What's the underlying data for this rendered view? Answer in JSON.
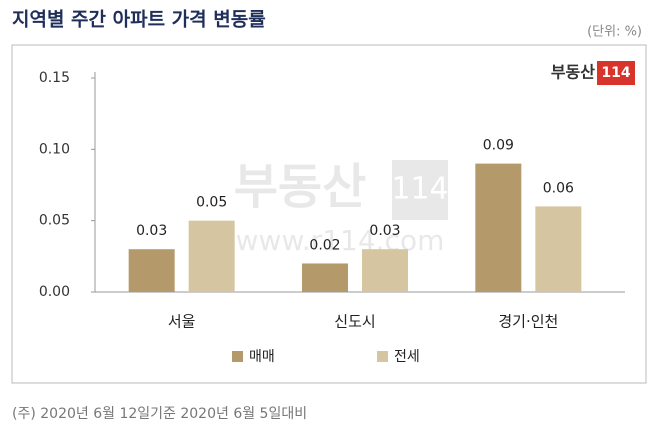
{
  "chart_data": {
    "type": "bar",
    "title": "지역별 주간 아파트 가격 변동률",
    "unit": "(단위: %)",
    "categories": [
      "서울",
      "신도시",
      "경기·인천"
    ],
    "series": [
      {
        "name": "매매",
        "color": "#b49a6a",
        "values": [
          0.03,
          0.02,
          0.09
        ]
      },
      {
        "name": "전세",
        "color": "#d5c5a1",
        "values": [
          0.05,
          0.03,
          0.06
        ]
      }
    ],
    "ylim": [
      0,
      0.15
    ],
    "yticks": [
      {
        "value": 0,
        "label": "0.00"
      },
      {
        "value": 0.05,
        "label": "0.05"
      },
      {
        "value": 0.1,
        "label": "0.10"
      },
      {
        "value": 0.15,
        "label": "0.15"
      }
    ],
    "grid": false,
    "note": "(주) 2020년 6월 12일기준 2020년 6월 5일대비"
  },
  "branding": {
    "logo_name": "부동산",
    "logo_number": "114",
    "watermark_url": "www.r114.com"
  }
}
